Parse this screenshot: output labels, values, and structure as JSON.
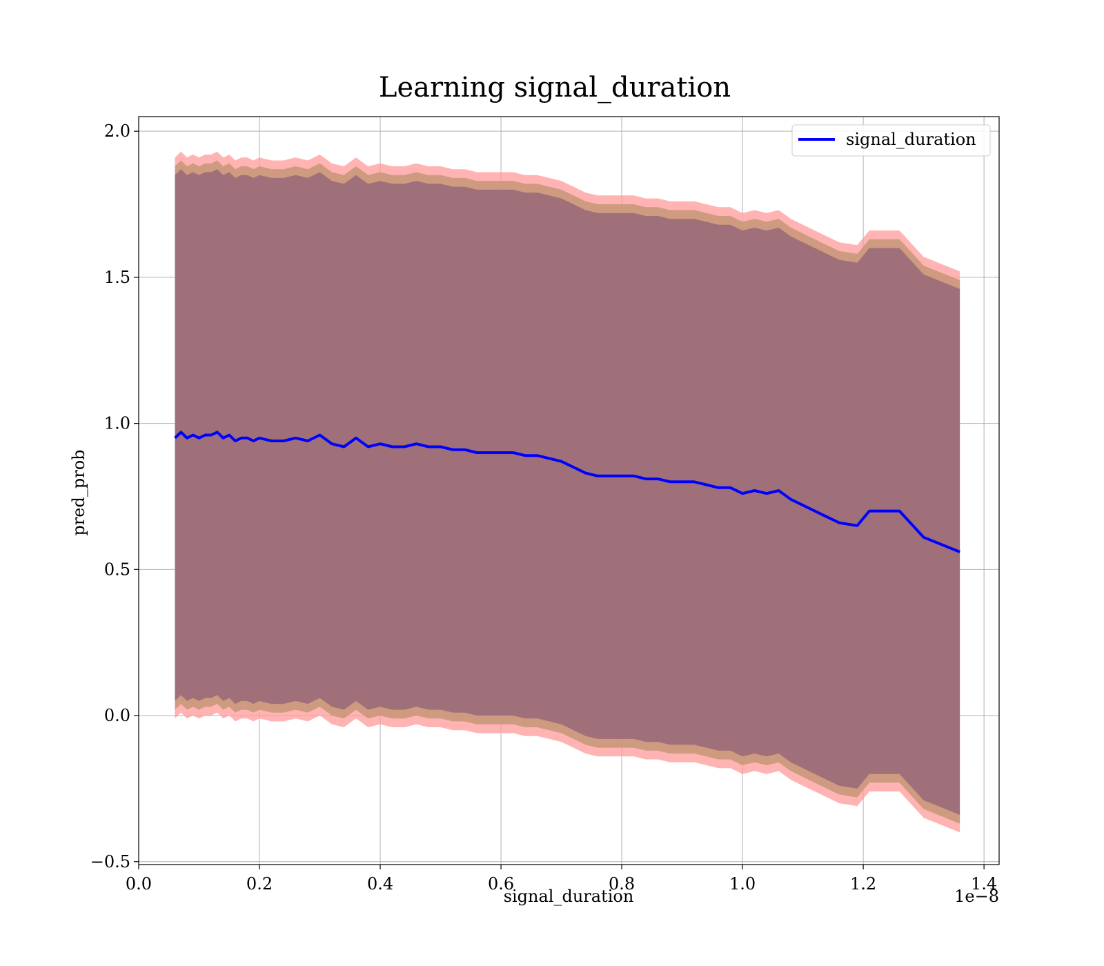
{
  "chart_data": {
    "type": "line",
    "title": "Learning signal_duration",
    "xlabel": "signal_duration",
    "ylabel": "pred_prob",
    "x_offset_label": "1e−8",
    "xlim": [
      0.0,
      1.425
    ],
    "ylim": [
      -0.51,
      2.05
    ],
    "x_ticks": [
      0.0,
      0.2,
      0.4,
      0.6,
      0.8,
      1.0,
      1.2,
      1.4
    ],
    "x_tick_labels": [
      "0.0",
      "0.2",
      "0.4",
      "0.6",
      "0.8",
      "1.0",
      "1.2",
      "1.4"
    ],
    "y_ticks": [
      -0.5,
      0.0,
      0.5,
      1.0,
      1.5,
      2.0
    ],
    "y_tick_labels": [
      "−0.5",
      "0.0",
      "0.5",
      "1.0",
      "1.5",
      "2.0"
    ],
    "grid": true,
    "legend": {
      "position": "top-right",
      "entries": [
        "signal_duration"
      ]
    },
    "colors": {
      "line": "#0000ff",
      "outer_band": "#ff9999",
      "middle_band": "#c9977a",
      "inner_band": "#a0707a"
    },
    "series": [
      {
        "name": "signal_duration",
        "x": [
          0.06,
          0.07,
          0.08,
          0.09,
          0.1,
          0.11,
          0.12,
          0.13,
          0.14,
          0.15,
          0.16,
          0.17,
          0.18,
          0.19,
          0.2,
          0.22,
          0.24,
          0.26,
          0.28,
          0.3,
          0.32,
          0.34,
          0.36,
          0.38,
          0.4,
          0.42,
          0.44,
          0.46,
          0.48,
          0.5,
          0.52,
          0.54,
          0.56,
          0.58,
          0.6,
          0.62,
          0.64,
          0.66,
          0.68,
          0.7,
          0.72,
          0.74,
          0.76,
          0.78,
          0.8,
          0.82,
          0.84,
          0.86,
          0.88,
          0.9,
          0.92,
          0.94,
          0.96,
          0.98,
          1.0,
          1.02,
          1.04,
          1.06,
          1.08,
          1.1,
          1.13,
          1.16,
          1.19,
          1.21,
          1.26,
          1.3,
          1.36
        ],
        "y": [
          0.95,
          0.97,
          0.95,
          0.96,
          0.95,
          0.96,
          0.96,
          0.97,
          0.95,
          0.96,
          0.94,
          0.95,
          0.95,
          0.94,
          0.95,
          0.94,
          0.94,
          0.95,
          0.94,
          0.96,
          0.93,
          0.92,
          0.95,
          0.92,
          0.93,
          0.92,
          0.92,
          0.93,
          0.92,
          0.92,
          0.91,
          0.91,
          0.9,
          0.9,
          0.9,
          0.9,
          0.89,
          0.89,
          0.88,
          0.87,
          0.85,
          0.83,
          0.82,
          0.82,
          0.82,
          0.82,
          0.81,
          0.81,
          0.8,
          0.8,
          0.8,
          0.79,
          0.78,
          0.78,
          0.76,
          0.77,
          0.76,
          0.77,
          0.74,
          0.72,
          0.69,
          0.66,
          0.65,
          0.7,
          0.7,
          0.61,
          0.56
        ],
        "band_outer_half_width": [
          0.96,
          0.96,
          0.96,
          0.96,
          0.96,
          0.96,
          0.96,
          0.96,
          0.96,
          0.96,
          0.96,
          0.96,
          0.96,
          0.96,
          0.96,
          0.96,
          0.96,
          0.96,
          0.96,
          0.96,
          0.96,
          0.96,
          0.96,
          0.96,
          0.96,
          0.96,
          0.96,
          0.96,
          0.96,
          0.96,
          0.96,
          0.96,
          0.96,
          0.96,
          0.96,
          0.96,
          0.96,
          0.96,
          0.96,
          0.96,
          0.96,
          0.96,
          0.96,
          0.96,
          0.96,
          0.96,
          0.96,
          0.96,
          0.96,
          0.96,
          0.96,
          0.96,
          0.96,
          0.96,
          0.96,
          0.96,
          0.96,
          0.96,
          0.96,
          0.96,
          0.96,
          0.96,
          0.96,
          0.96,
          0.96,
          0.96,
          0.96
        ],
        "band_middle_half_width": [
          0.93,
          0.93,
          0.93,
          0.93,
          0.93,
          0.93,
          0.93,
          0.93,
          0.93,
          0.93,
          0.93,
          0.93,
          0.93,
          0.93,
          0.93,
          0.93,
          0.93,
          0.93,
          0.93,
          0.93,
          0.93,
          0.93,
          0.93,
          0.93,
          0.93,
          0.93,
          0.93,
          0.93,
          0.93,
          0.93,
          0.93,
          0.93,
          0.93,
          0.93,
          0.93,
          0.93,
          0.93,
          0.93,
          0.93,
          0.93,
          0.93,
          0.93,
          0.93,
          0.93,
          0.93,
          0.93,
          0.93,
          0.93,
          0.93,
          0.93,
          0.93,
          0.93,
          0.93,
          0.93,
          0.93,
          0.93,
          0.93,
          0.93,
          0.93,
          0.93,
          0.93,
          0.93,
          0.93,
          0.93,
          0.93,
          0.93,
          0.93
        ],
        "band_inner_half_width": [
          0.9,
          0.9,
          0.9,
          0.9,
          0.9,
          0.9,
          0.9,
          0.9,
          0.9,
          0.9,
          0.9,
          0.9,
          0.9,
          0.9,
          0.9,
          0.9,
          0.9,
          0.9,
          0.9,
          0.9,
          0.9,
          0.9,
          0.9,
          0.9,
          0.9,
          0.9,
          0.9,
          0.9,
          0.9,
          0.9,
          0.9,
          0.9,
          0.9,
          0.9,
          0.9,
          0.9,
          0.9,
          0.9,
          0.9,
          0.9,
          0.9,
          0.9,
          0.9,
          0.9,
          0.9,
          0.9,
          0.9,
          0.9,
          0.9,
          0.9,
          0.9,
          0.9,
          0.9,
          0.9,
          0.9,
          0.9,
          0.9,
          0.9,
          0.9,
          0.9,
          0.9,
          0.9,
          0.9,
          0.9,
          0.9,
          0.9,
          0.9
        ]
      }
    ]
  }
}
